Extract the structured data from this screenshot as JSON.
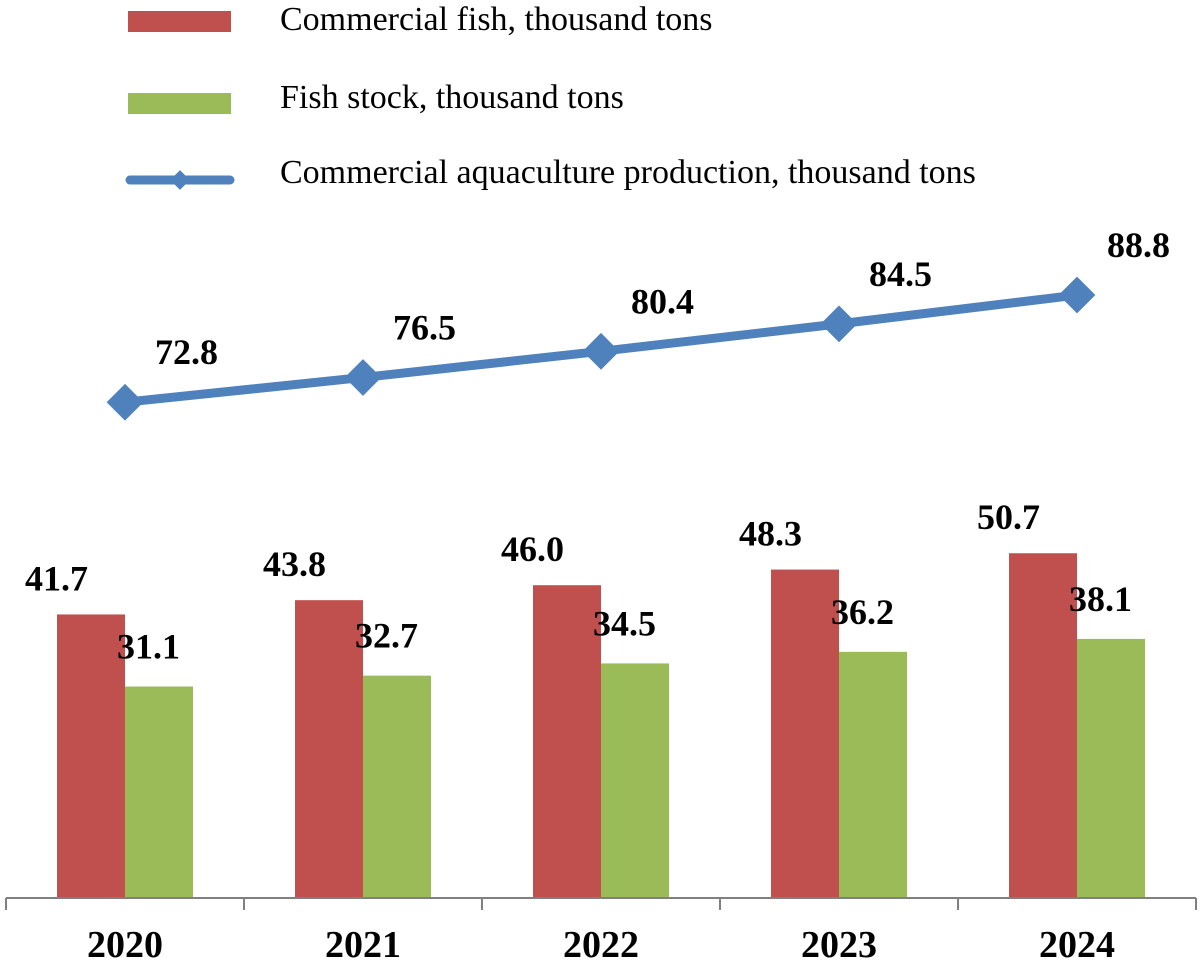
{
  "chart_data": {
    "type": "bar",
    "title": "",
    "xlabel": "",
    "ylabel": "",
    "categories": [
      "2020",
      "2021",
      "2022",
      "2023",
      "2024"
    ],
    "series": [
      {
        "name": "Commercial fish, thousand tons",
        "kind": "bar",
        "color": "#c0504d",
        "values": [
          41.7,
          43.8,
          46.0,
          48.3,
          50.7
        ],
        "labels": [
          "41.7",
          "43.8",
          "46.0",
          "48.3",
          "50.7"
        ]
      },
      {
        "name": "Fish stock, thousand tons",
        "kind": "bar",
        "color": "#9bbb59",
        "values": [
          31.1,
          32.7,
          34.5,
          36.2,
          38.1
        ],
        "labels": [
          "31.1",
          "32.7",
          "34.5",
          "36.2",
          "38.1"
        ]
      },
      {
        "name": "Commercial aquaculture production, thousand tons",
        "kind": "line",
        "color": "#4f81bd",
        "values": [
          72.8,
          76.5,
          80.4,
          84.5,
          88.8
        ],
        "labels": [
          "72.8",
          "76.5",
          "80.4",
          "84.5",
          "88.8"
        ]
      }
    ],
    "bar_ylim": [
      0,
      70
    ],
    "line_ylim": [
      30,
      120
    ],
    "grid": false,
    "legend_position": "top-left"
  }
}
